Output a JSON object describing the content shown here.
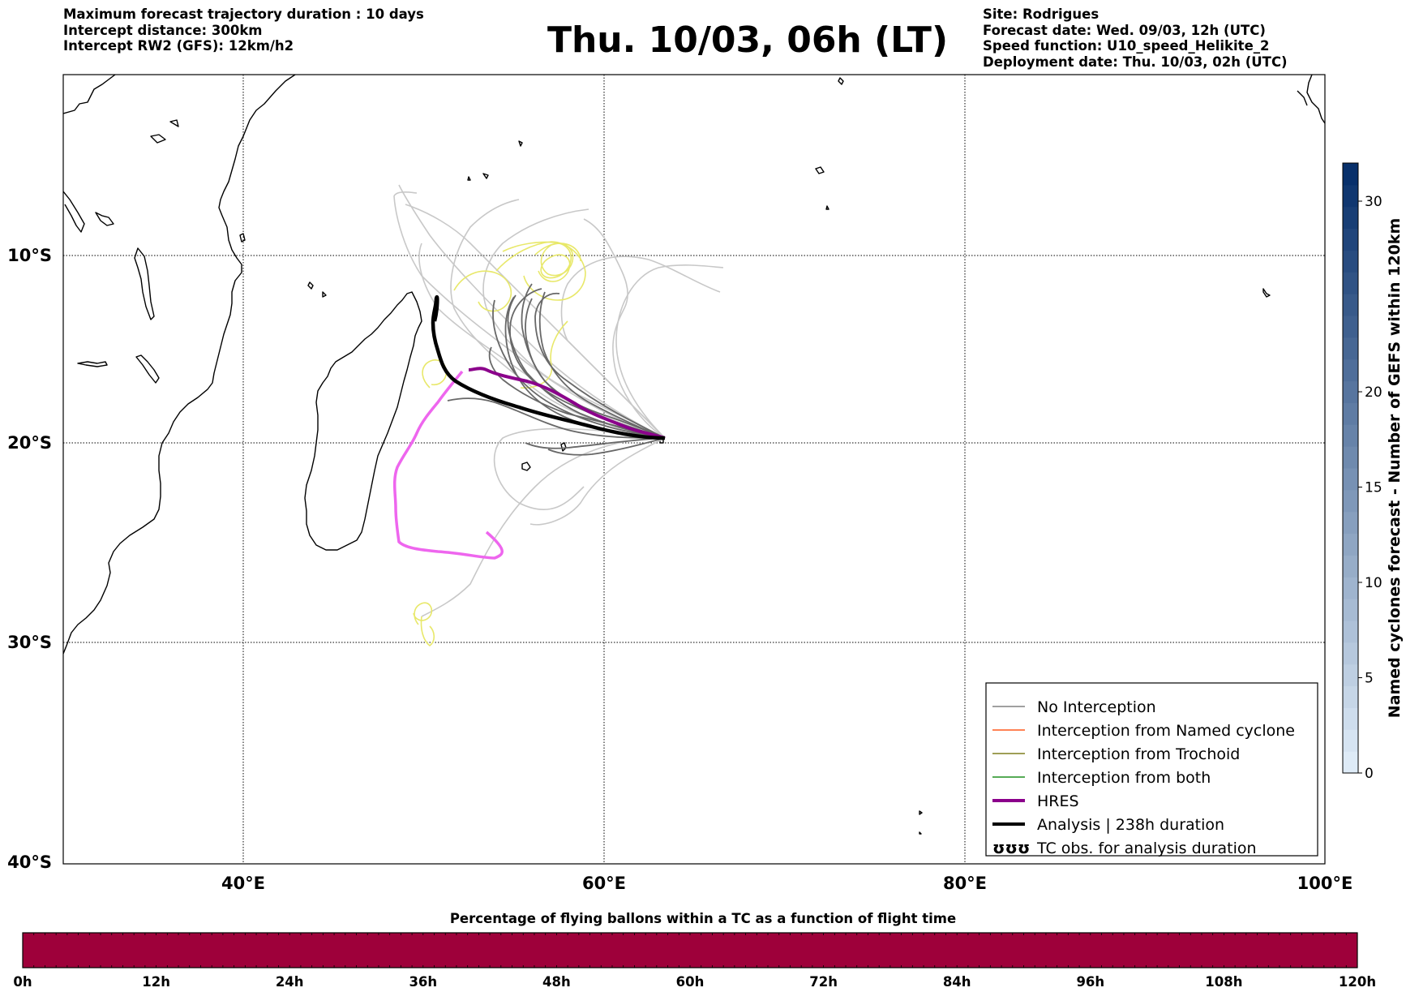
{
  "header_left": [
    "Maximum forecast trajectory duration : 10 days",
    "Intercept distance: 300km",
    "Intercept RW2 (GFS):  12km/h2"
  ],
  "title": "Thu. 10/03, 06h (LT)",
  "header_right": [
    "Site: Rodrigues",
    "Forecast date: Wed. 09/03, 12h (UTC)",
    "Speed function: U10_speed_Helikite_2",
    "Deployment date: Thu. 10/03, 02h (UTC)"
  ],
  "map": {
    "lon_ticks": [
      "40°E",
      "60°E",
      "80°E",
      "100°E"
    ],
    "lat_ticks": [
      "10°S",
      "20°S",
      "30°S",
      "40°S"
    ],
    "extent": {
      "lon": [
        30,
        100
      ],
      "lat": [
        -40,
        -1
      ]
    }
  },
  "legend": {
    "items": [
      {
        "label": "No Interception",
        "color": "#808080",
        "style": "thin"
      },
      {
        "label": "Interception from Named cyclone",
        "color": "#ff5a1f",
        "style": "thin"
      },
      {
        "label": "Interception from Trochoid",
        "color": "#7f7f1f",
        "style": "thin"
      },
      {
        "label": "Interception from both",
        "color": "#1f8f1f",
        "style": "thin"
      },
      {
        "label": "HRES",
        "color": "#8b008b",
        "style": "thick"
      },
      {
        "label": "Analysis | 238h duration",
        "color": "#000000",
        "style": "thick"
      },
      {
        "label": "TC obs. for analysis duration",
        "color": "#000000",
        "style": "tc-symbol"
      }
    ],
    "tc_symbol": "ʊʊʊ"
  },
  "colorbar_right": {
    "label": "Named cyclones forecast - Number of GEFS within 120km",
    "ticks": [
      "0",
      "5",
      "10",
      "15",
      "20",
      "30"
    ],
    "range": [
      0,
      32
    ]
  },
  "colorbar_bottom": {
    "title": "Percentage of flying ballons within a TC as a function of flight time",
    "ticks": [
      "0h",
      "12h",
      "24h",
      "36h",
      "48h",
      "60h",
      "72h",
      "84h",
      "96h",
      "108h",
      "120h"
    ],
    "fill_color": "#9e003a"
  },
  "colors": {
    "hres": "#8b008b",
    "deterministic_pink": "#ee66ee",
    "analysis": "#000000",
    "trochoid_yellow": "#e8e86a",
    "ensemble_dark": "#666666",
    "ensemble_light": "#c8c8c8"
  }
}
